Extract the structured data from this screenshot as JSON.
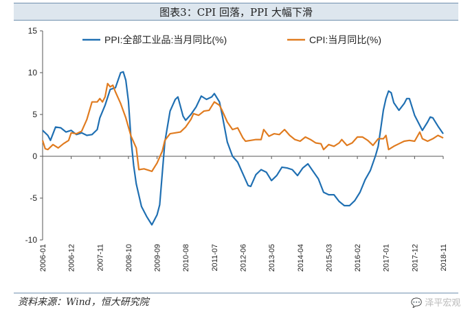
{
  "title": "图表3：CPI 回落，PPI 大幅下滑",
  "source": "资料来源：Wind，恒大研究院",
  "watermark": "泽平宏观",
  "chart_data": {
    "type": "line",
    "ylim": [
      -10,
      15
    ],
    "yticks": [
      -10,
      -5,
      0,
      5,
      10,
      15
    ],
    "x_start": "2006-01",
    "x_end": "2018-11",
    "xticks": [
      "2006-01",
      "2006-12",
      "2007-11",
      "2008-10",
      "2009-09",
      "2010-08",
      "2011-07",
      "2012-06",
      "2013-05",
      "2014-04",
      "2015-03",
      "2016-02",
      "2017-01",
      "2017-12",
      "2018-11"
    ],
    "legend": "top-right",
    "series": [
      {
        "name": "PPI:全部工业品:当月同比(%)",
        "color": "#1f6fb2",
        "points": [
          [
            "2006-01",
            3.1
          ],
          [
            "2006-03",
            2.5
          ],
          [
            "2006-04",
            1.9
          ],
          [
            "2006-06",
            3.5
          ],
          [
            "2006-08",
            3.4
          ],
          [
            "2006-10",
            2.9
          ],
          [
            "2006-12",
            3.1
          ],
          [
            "2007-02",
            2.6
          ],
          [
            "2007-04",
            2.8
          ],
          [
            "2007-06",
            2.5
          ],
          [
            "2007-08",
            2.6
          ],
          [
            "2007-10",
            3.2
          ],
          [
            "2007-11",
            4.6
          ],
          [
            "2008-01",
            6.1
          ],
          [
            "2008-03",
            8.0
          ],
          [
            "2008-05",
            8.2
          ],
          [
            "2008-07",
            10.0
          ],
          [
            "2008-08",
            10.1
          ],
          [
            "2008-09",
            9.1
          ],
          [
            "2008-10",
            6.6
          ],
          [
            "2008-11",
            2.0
          ],
          [
            "2008-12",
            -1.1
          ],
          [
            "2009-01",
            -3.3
          ],
          [
            "2009-03",
            -6.0
          ],
          [
            "2009-05",
            -7.2
          ],
          [
            "2009-07",
            -8.2
          ],
          [
            "2009-09",
            -7.0
          ],
          [
            "2009-10",
            -5.8
          ],
          [
            "2009-11",
            -2.1
          ],
          [
            "2009-12",
            1.7
          ],
          [
            "2010-02",
            5.4
          ],
          [
            "2010-04",
            6.8
          ],
          [
            "2010-05",
            7.1
          ],
          [
            "2010-07",
            4.8
          ],
          [
            "2010-08",
            4.3
          ],
          [
            "2010-10",
            5.0
          ],
          [
            "2010-12",
            5.9
          ],
          [
            "2011-02",
            7.2
          ],
          [
            "2011-04",
            6.8
          ],
          [
            "2011-06",
            7.1
          ],
          [
            "2011-07",
            7.5
          ],
          [
            "2011-09",
            6.5
          ],
          [
            "2011-10",
            5.0
          ],
          [
            "2011-12",
            1.7
          ],
          [
            "2012-02",
            0.0
          ],
          [
            "2012-04",
            -0.7
          ],
          [
            "2012-06",
            -2.1
          ],
          [
            "2012-08",
            -3.5
          ],
          [
            "2012-09",
            -3.6
          ],
          [
            "2012-11",
            -2.2
          ],
          [
            "2013-01",
            -1.6
          ],
          [
            "2013-03",
            -1.9
          ],
          [
            "2013-05",
            -2.9
          ],
          [
            "2013-07",
            -2.3
          ],
          [
            "2013-09",
            -1.3
          ],
          [
            "2013-11",
            -1.4
          ],
          [
            "2014-01",
            -1.6
          ],
          [
            "2014-03",
            -2.3
          ],
          [
            "2014-05",
            -1.4
          ],
          [
            "2014-07",
            -0.9
          ],
          [
            "2014-09",
            -1.8
          ],
          [
            "2014-11",
            -2.7
          ],
          [
            "2015-01",
            -4.3
          ],
          [
            "2015-03",
            -4.6
          ],
          [
            "2015-05",
            -4.6
          ],
          [
            "2015-07",
            -5.4
          ],
          [
            "2015-09",
            -5.9
          ],
          [
            "2015-11",
            -5.9
          ],
          [
            "2016-01",
            -5.3
          ],
          [
            "2016-03",
            -4.3
          ],
          [
            "2016-05",
            -2.8
          ],
          [
            "2016-07",
            -1.7
          ],
          [
            "2016-09",
            0.1
          ],
          [
            "2016-10",
            1.2
          ],
          [
            "2016-11",
            3.3
          ],
          [
            "2016-12",
            5.5
          ],
          [
            "2017-01",
            6.9
          ],
          [
            "2017-02",
            7.8
          ],
          [
            "2017-03",
            7.6
          ],
          [
            "2017-04",
            6.4
          ],
          [
            "2017-06",
            5.5
          ],
          [
            "2017-08",
            6.3
          ],
          [
            "2017-09",
            6.9
          ],
          [
            "2017-10",
            6.9
          ],
          [
            "2017-12",
            4.9
          ],
          [
            "2018-02",
            3.7
          ],
          [
            "2018-03",
            3.1
          ],
          [
            "2018-05",
            4.1
          ],
          [
            "2018-06",
            4.7
          ],
          [
            "2018-07",
            4.6
          ],
          [
            "2018-09",
            3.6
          ],
          [
            "2018-11",
            2.7
          ]
        ]
      },
      {
        "name": "CPI:当月同比(%)",
        "color": "#e07b1f",
        "points": [
          [
            "2006-01",
            1.9
          ],
          [
            "2006-02",
            0.9
          ],
          [
            "2006-03",
            0.8
          ],
          [
            "2006-05",
            1.4
          ],
          [
            "2006-07",
            1.0
          ],
          [
            "2006-09",
            1.5
          ],
          [
            "2006-11",
            1.9
          ],
          [
            "2006-12",
            2.8
          ],
          [
            "2007-02",
            2.7
          ],
          [
            "2007-04",
            3.0
          ],
          [
            "2007-06",
            4.4
          ],
          [
            "2007-08",
            6.5
          ],
          [
            "2007-10",
            6.5
          ],
          [
            "2007-11",
            6.9
          ],
          [
            "2007-12",
            6.5
          ],
          [
            "2008-01",
            7.1
          ],
          [
            "2008-02",
            8.7
          ],
          [
            "2008-03",
            8.3
          ],
          [
            "2008-04",
            8.5
          ],
          [
            "2008-05",
            7.7
          ],
          [
            "2008-07",
            6.3
          ],
          [
            "2008-09",
            4.6
          ],
          [
            "2008-11",
            2.4
          ],
          [
            "2009-01",
            1.0
          ],
          [
            "2009-02",
            -1.6
          ],
          [
            "2009-04",
            -1.5
          ],
          [
            "2009-06",
            -1.7
          ],
          [
            "2009-07",
            -1.8
          ],
          [
            "2009-09",
            -0.8
          ],
          [
            "2009-11",
            0.6
          ],
          [
            "2009-12",
            1.9
          ],
          [
            "2010-02",
            2.7
          ],
          [
            "2010-04",
            2.8
          ],
          [
            "2010-06",
            2.9
          ],
          [
            "2010-08",
            3.5
          ],
          [
            "2010-10",
            4.4
          ],
          [
            "2010-11",
            5.1
          ],
          [
            "2011-01",
            4.9
          ],
          [
            "2011-03",
            5.4
          ],
          [
            "2011-05",
            5.5
          ],
          [
            "2011-07",
            6.5
          ],
          [
            "2011-09",
            6.1
          ],
          [
            "2011-10",
            5.5
          ],
          [
            "2011-12",
            4.1
          ],
          [
            "2012-02",
            3.2
          ],
          [
            "2012-04",
            3.4
          ],
          [
            "2012-06",
            2.2
          ],
          [
            "2012-07",
            1.8
          ],
          [
            "2012-09",
            1.9
          ],
          [
            "2012-11",
            2.0
          ],
          [
            "2013-01",
            2.0
          ],
          [
            "2013-02",
            3.2
          ],
          [
            "2013-04",
            2.4
          ],
          [
            "2013-06",
            2.7
          ],
          [
            "2013-08",
            2.6
          ],
          [
            "2013-10",
            3.2
          ],
          [
            "2013-12",
            2.5
          ],
          [
            "2014-02",
            2.0
          ],
          [
            "2014-04",
            1.8
          ],
          [
            "2014-06",
            2.3
          ],
          [
            "2014-08",
            2.0
          ],
          [
            "2014-10",
            1.6
          ],
          [
            "2014-12",
            1.5
          ],
          [
            "2015-01",
            0.8
          ],
          [
            "2015-03",
            1.4
          ],
          [
            "2015-05",
            1.2
          ],
          [
            "2015-07",
            1.6
          ],
          [
            "2015-08",
            2.0
          ],
          [
            "2015-10",
            1.3
          ],
          [
            "2015-12",
            1.6
          ],
          [
            "2016-02",
            2.3
          ],
          [
            "2016-04",
            2.3
          ],
          [
            "2016-06",
            1.9
          ],
          [
            "2016-08",
            1.3
          ],
          [
            "2016-10",
            2.1
          ],
          [
            "2016-12",
            2.1
          ],
          [
            "2017-01",
            2.5
          ],
          [
            "2017-02",
            0.8
          ],
          [
            "2017-04",
            1.2
          ],
          [
            "2017-06",
            1.5
          ],
          [
            "2017-08",
            1.8
          ],
          [
            "2017-10",
            1.9
          ],
          [
            "2017-12",
            1.8
          ],
          [
            "2018-02",
            2.9
          ],
          [
            "2018-03",
            2.1
          ],
          [
            "2018-05",
            1.8
          ],
          [
            "2018-07",
            2.1
          ],
          [
            "2018-09",
            2.5
          ],
          [
            "2018-11",
            2.2
          ]
        ]
      }
    ]
  }
}
